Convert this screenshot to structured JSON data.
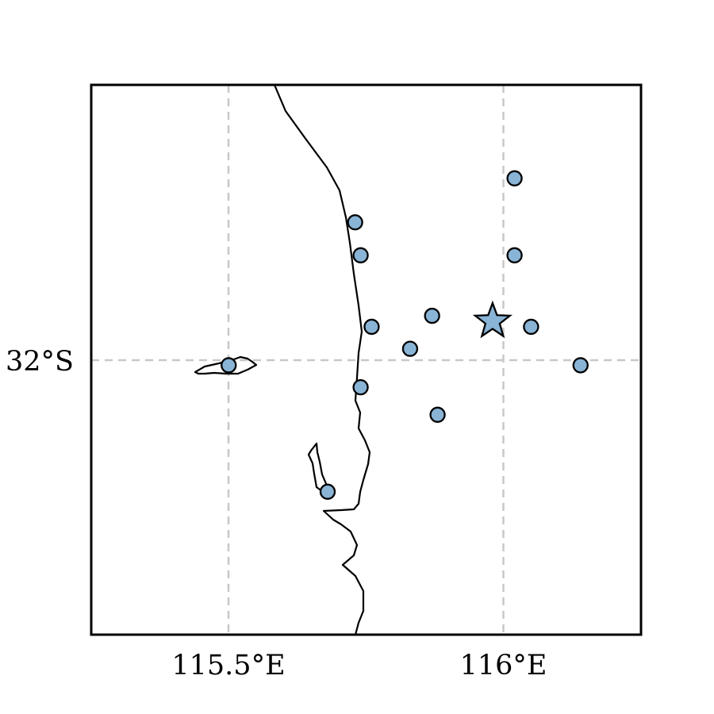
{
  "map": {
    "lon_range": [
      115.25,
      116.25
    ],
    "lat_range": [
      -32.5,
      -31.5
    ],
    "ticks": {
      "lon": [
        {
          "value": 115.5,
          "label": "115.5°E"
        },
        {
          "value": 116.0,
          "label": "116°E"
        }
      ],
      "lat": [
        {
          "value": -32.0,
          "label": "32°S"
        }
      ]
    },
    "gridlines": true,
    "marker_color": "#89b4d6",
    "marker_edge_color": "#000000",
    "stations": [
      {
        "lon": 116.02,
        "lat": -31.67
      },
      {
        "lon": 116.02,
        "lat": -31.81
      },
      {
        "lon": 115.73,
        "lat": -31.75
      },
      {
        "lon": 115.74,
        "lat": -31.81
      },
      {
        "lon": 115.87,
        "lat": -31.92
      },
      {
        "lon": 116.05,
        "lat": -31.94
      },
      {
        "lon": 115.76,
        "lat": -31.94
      },
      {
        "lon": 115.83,
        "lat": -31.98
      },
      {
        "lon": 115.5,
        "lat": -32.01
      },
      {
        "lon": 116.14,
        "lat": -32.01
      },
      {
        "lon": 115.74,
        "lat": -32.05
      },
      {
        "lon": 115.88,
        "lat": -32.1
      },
      {
        "lon": 115.68,
        "lat": -32.24
      }
    ],
    "epicenter": {
      "lon": 115.98,
      "lat": -31.93
    }
  }
}
